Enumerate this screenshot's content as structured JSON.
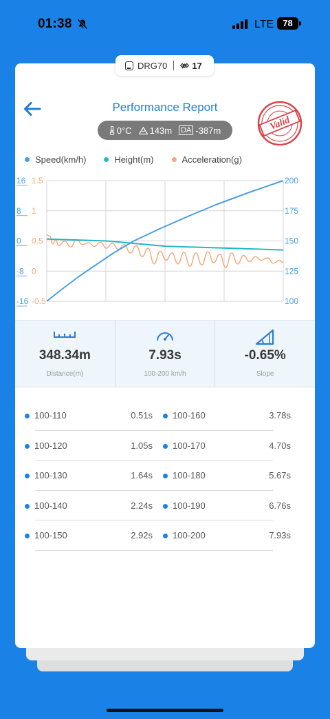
{
  "status_bar": {
    "time": "01:38",
    "network": "LTE",
    "battery": "78"
  },
  "device": {
    "name": "DRG70",
    "satellites": "17"
  },
  "header": {
    "title": "Performance Report",
    "temperature": "0°C",
    "altitude": "143m",
    "density_altitude_badge": "DA",
    "density_altitude": "-387m",
    "stamp_text": "Valid"
  },
  "chart_data": {
    "type": "line",
    "legend": [
      "Speed(km/h)",
      "Height(m)",
      "Acceleration(g)"
    ],
    "colors": {
      "speed": "#4a9fe3",
      "height": "#22b8c4",
      "acceleration": "#f4a878",
      "left_axis": "#4a9fe3"
    },
    "axes": {
      "speed": {
        "min": 100,
        "max": 200,
        "ticks": [
          "200",
          "175",
          "150",
          "125",
          "100"
        ]
      },
      "height": {
        "min": -16,
        "max": 16,
        "ticks": [
          "16",
          "8",
          "0",
          "-8",
          "-16"
        ]
      },
      "acceleration": {
        "min": -0.5,
        "max": 1.5,
        "ticks": [
          "1.5",
          "1",
          "0.5",
          "0",
          "-0.5"
        ]
      }
    },
    "x_range": [
      0,
      7.93
    ],
    "grid": true,
    "series": [
      {
        "name": "Speed(km/h)",
        "axis": "speed",
        "x": [
          0,
          0.51,
          1.05,
          1.64,
          2.24,
          2.92,
          3.78,
          4.7,
          5.67,
          6.76,
          7.93
        ],
        "y": [
          100,
          110,
          120,
          130,
          140,
          150,
          160,
          170,
          180,
          190,
          200
        ]
      },
      {
        "name": "Height(m)",
        "axis": "height",
        "x": [
          0,
          2,
          4,
          6,
          7.93
        ],
        "y": [
          0.5,
          0,
          -1.4,
          -1.9,
          -2.4
        ]
      },
      {
        "name": "Acceleration(g)",
        "axis": "acceleration",
        "x": [
          0,
          0.1,
          0.2,
          0.3,
          0.4,
          0.6,
          0.8,
          1.0,
          1.2,
          1.4,
          1.6,
          1.8,
          2.0,
          2.2,
          2.4,
          2.6,
          2.8,
          3.0,
          3.2,
          3.4,
          3.6,
          3.8,
          4.0,
          4.2,
          4.4,
          4.6,
          4.8,
          5.0,
          5.2,
          5.4,
          5.6,
          5.8,
          6.0,
          6.2,
          6.4,
          6.6,
          6.8,
          7.0,
          7.2,
          7.4,
          7.6,
          7.8,
          7.93
        ],
        "y": [
          0.6,
          0.58,
          0.45,
          0.52,
          0.42,
          0.5,
          0.4,
          0.52,
          0.44,
          0.47,
          0.41,
          0.48,
          0.38,
          0.46,
          0.36,
          0.44,
          0.3,
          0.42,
          0.24,
          0.38,
          0.12,
          0.33,
          0.18,
          0.3,
          0.12,
          0.31,
          0.08,
          0.3,
          0.1,
          0.32,
          0.14,
          0.28,
          0.06,
          0.3,
          0.12,
          0.26,
          0.16,
          0.24,
          0.18,
          0.22,
          0.13,
          0.18,
          0.14
        ]
      }
    ]
  },
  "stats": [
    {
      "value": "348.34m",
      "label": "Distance(m)",
      "icon": "ruler-icon"
    },
    {
      "value": "7.93s",
      "label": "100-200 km/h",
      "icon": "speedometer-icon"
    },
    {
      "value": "-0.65%",
      "label": "Slope",
      "icon": "slope-icon"
    }
  ],
  "splits": {
    "left": [
      {
        "range": "100-110",
        "time": "0.51s"
      },
      {
        "range": "100-120",
        "time": "1.05s"
      },
      {
        "range": "100-130",
        "time": "1.64s"
      },
      {
        "range": "100-140",
        "time": "2.24s"
      },
      {
        "range": "100-150",
        "time": "2.92s"
      }
    ],
    "right": [
      {
        "range": "100-160",
        "time": "3.78s"
      },
      {
        "range": "100-170",
        "time": "4.70s"
      },
      {
        "range": "100-180",
        "time": "5.67s"
      },
      {
        "range": "100-190",
        "time": "6.76s"
      },
      {
        "range": "100-200",
        "time": "7.93s"
      }
    ]
  }
}
